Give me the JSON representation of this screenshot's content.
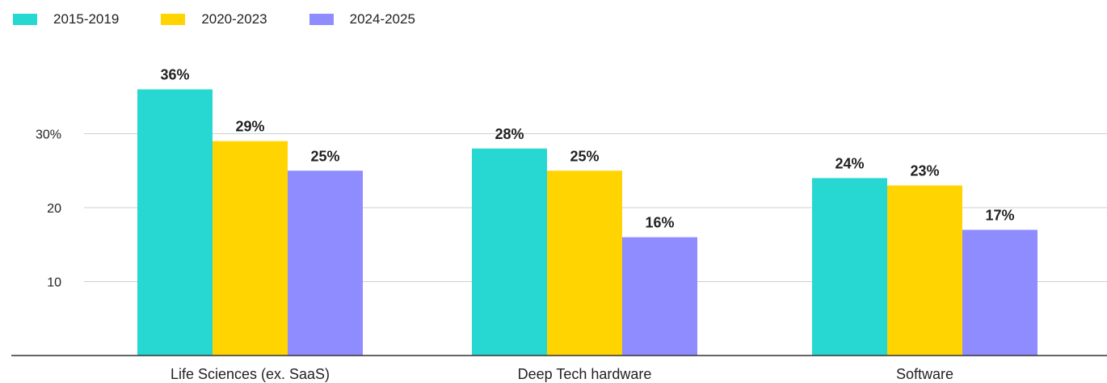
{
  "colors": {
    "series_1": "#26D7D2",
    "series_2": "#FFD400",
    "series_3": "#8E8CFF",
    "grid": "#cfcfcf",
    "axis": "#333333",
    "text": "#222222"
  },
  "legend": {
    "items": [
      {
        "label": "2015-2019"
      },
      {
        "label": "2020-2023"
      },
      {
        "label": "2024-2025"
      }
    ]
  },
  "chart_data": {
    "type": "bar",
    "title": "",
    "xlabel": "",
    "ylabel": "",
    "categories": [
      "Life Sciences (ex. SaaS)",
      "Deep Tech hardware",
      "Software"
    ],
    "series": [
      {
        "name": "2015-2019",
        "values": [
          36,
          28,
          24
        ],
        "labels": [
          "36%",
          "28%",
          "24%"
        ]
      },
      {
        "name": "2020-2023",
        "values": [
          29,
          25,
          23
        ],
        "labels": [
          "29%",
          "25%",
          "23%"
        ]
      },
      {
        "name": "2024-2025",
        "values": [
          25,
          16,
          17
        ],
        "labels": [
          "25%",
          "16%",
          "17%"
        ]
      }
    ],
    "yticks": [
      {
        "value": 10,
        "label": "10"
      },
      {
        "value": 20,
        "label": "20"
      },
      {
        "value": 30,
        "label": "30%"
      }
    ],
    "ylim": [
      0,
      40
    ],
    "grid": true,
    "legend_position": "top-left"
  }
}
